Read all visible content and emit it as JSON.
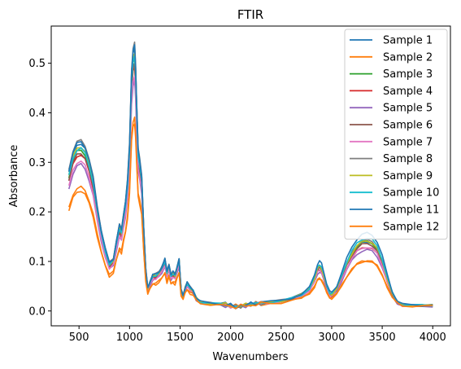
{
  "chart_data": {
    "type": "line",
    "title": "FTIR",
    "xlabel": "Wavenumbers",
    "ylabel": "Absorbance",
    "xlim": [
      225,
      4175
    ],
    "ylim": [
      -0.03,
      0.575
    ],
    "xticks": [
      500,
      1000,
      1500,
      2000,
      2500,
      3000,
      3500,
      4000
    ],
    "yticks": [
      0.0,
      0.1,
      0.2,
      0.3,
      0.4,
      0.5
    ],
    "ytick_labels": [
      "0.0",
      "0.1",
      "0.2",
      "0.3",
      "0.4",
      "0.5"
    ],
    "grid": false,
    "legend_position": "top-right",
    "base_curve": {
      "x": [
        400,
        440,
        480,
        520,
        560,
        600,
        640,
        680,
        720,
        760,
        800,
        840,
        870,
        900,
        920,
        940,
        960,
        980,
        1000,
        1020,
        1035,
        1050,
        1060,
        1070,
        1085,
        1100,
        1120,
        1140,
        1160,
        1180,
        1200,
        1230,
        1260,
        1290,
        1320,
        1350,
        1370,
        1390,
        1410,
        1430,
        1450,
        1470,
        1490,
        1510,
        1530,
        1550,
        1570,
        1600,
        1630,
        1660,
        1700,
        1800,
        1900,
        1950,
        2000,
        2050,
        2100,
        2150,
        2200,
        2250,
        2300,
        2400,
        2500,
        2600,
        2700,
        2780,
        2830,
        2860,
        2880,
        2900,
        2920,
        2950,
        2980,
        3000,
        3050,
        3100,
        3150,
        3200,
        3250,
        3300,
        3350,
        3400,
        3450,
        3500,
        3550,
        3600,
        3650,
        3700,
        3800,
        3900,
        4000
      ],
      "y": [
        0.27,
        0.305,
        0.322,
        0.325,
        0.315,
        0.29,
        0.255,
        0.2,
        0.155,
        0.12,
        0.092,
        0.1,
        0.135,
        0.165,
        0.155,
        0.185,
        0.21,
        0.25,
        0.32,
        0.46,
        0.5,
        0.51,
        0.47,
        0.4,
        0.31,
        0.29,
        0.26,
        0.16,
        0.08,
        0.045,
        0.055,
        0.07,
        0.07,
        0.075,
        0.085,
        0.1,
        0.075,
        0.09,
        0.07,
        0.075,
        0.07,
        0.085,
        0.1,
        0.04,
        0.03,
        0.045,
        0.055,
        0.045,
        0.04,
        0.025,
        0.018,
        0.015,
        0.014,
        0.013,
        0.01,
        0.008,
        0.01,
        0.012,
        0.013,
        0.015,
        0.016,
        0.018,
        0.02,
        0.025,
        0.032,
        0.045,
        0.065,
        0.085,
        0.09,
        0.085,
        0.072,
        0.05,
        0.035,
        0.033,
        0.045,
        0.07,
        0.095,
        0.115,
        0.13,
        0.138,
        0.14,
        0.137,
        0.125,
        0.1,
        0.065,
        0.035,
        0.018,
        0.012,
        0.011,
        0.011,
        0.011
      ]
    },
    "series": [
      {
        "name": "Sample 1",
        "color": "#1f77b4",
        "scale": 1.04,
        "offset": 0.0,
        "oh": 1.0
      },
      {
        "name": "Sample 2",
        "color": "#ff7f0e",
        "scale": 0.76,
        "offset": 0.003,
        "oh": 0.7
      },
      {
        "name": "Sample 3",
        "color": "#2ca02c",
        "scale": 1.0,
        "offset": 0.0,
        "oh": 1.0
      },
      {
        "name": "Sample 4",
        "color": "#d62728",
        "scale": 0.97,
        "offset": 0.0,
        "oh": 0.92
      },
      {
        "name": "Sample 5",
        "color": "#9467bd",
        "scale": 0.91,
        "offset": 0.0,
        "oh": 0.88
      },
      {
        "name": "Sample 6",
        "color": "#8c564b",
        "scale": 0.98,
        "offset": 0.0,
        "oh": 0.97
      },
      {
        "name": "Sample 7",
        "color": "#e377c2",
        "scale": 0.93,
        "offset": 0.0,
        "oh": 0.92
      },
      {
        "name": "Sample 8",
        "color": "#7f7f7f",
        "scale": 1.06,
        "offset": 0.0,
        "oh": 1.02
      },
      {
        "name": "Sample 9",
        "color": "#bcbd22",
        "scale": 1.02,
        "offset": 0.0,
        "oh": 1.01
      },
      {
        "name": "Sample 10",
        "color": "#17becf",
        "scale": 1.01,
        "offset": 0.0,
        "oh": 1.05
      },
      {
        "name": "Sample 11",
        "color": "#1f77b4",
        "scale": 1.05,
        "offset": 0.0,
        "oh": 1.12
      },
      {
        "name": "Sample 12",
        "color": "#ff7f0e",
        "scale": 0.74,
        "offset": 0.002,
        "oh": 0.71
      }
    ]
  }
}
